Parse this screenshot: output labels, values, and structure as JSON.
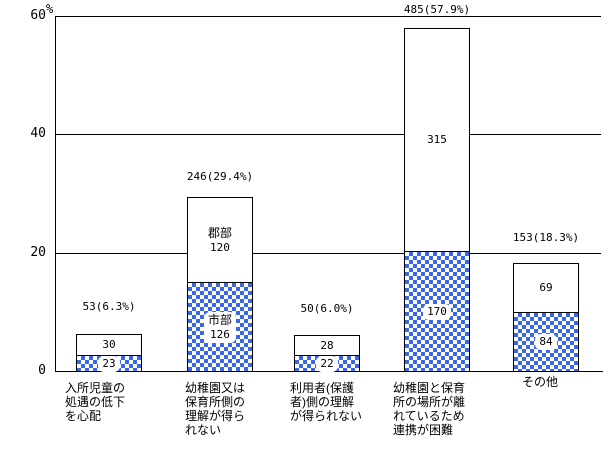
{
  "chart_data": {
    "type": "bar",
    "stacked": true,
    "title": "",
    "y_axis": {
      "unit": "%",
      "ticks": [
        0,
        20,
        40,
        60
      ],
      "min": 0,
      "max": 60,
      "gridlines": [
        20,
        40,
        60
      ]
    },
    "legend": {
      "checkered_label": "市部",
      "white_label": "郡部",
      "legend_position": "inside-second-bar"
    },
    "colors": {
      "checker_blue": "#3A67E8",
      "bar_white": "#FFFFFF",
      "line_black": "#000000"
    },
    "bars": [
      {
        "category_lines": [
          "入所児童の",
          "処遇の低下",
          "を心配"
        ],
        "total_label": "53(6.3%)",
        "total_count": 53,
        "total_pct": 6.3,
        "white_segment": {
          "count": 30,
          "label_lines": [
            "30"
          ],
          "pct": 3.55
        },
        "checkered_segment": {
          "count": 23,
          "label_lines": [
            "23"
          ],
          "pct": 2.75
        }
      },
      {
        "category_lines": [
          "幼稚園又は",
          "保育所側の",
          "理解が得ら",
          "れない"
        ],
        "total_label": "246(29.4%)",
        "total_count": 246,
        "total_pct": 29.4,
        "white_segment": {
          "count": 120,
          "label_lines": [
            "郡部",
            "120"
          ],
          "pct": 14.35
        },
        "checkered_segment": {
          "count": 126,
          "label_lines": [
            "市部",
            "126"
          ],
          "pct": 15.05
        }
      },
      {
        "category_lines": [
          "利用者(保護",
          "者)側の理解",
          "が得られない"
        ],
        "total_label": "50(6.0%)",
        "total_count": 50,
        "total_pct": 6.0,
        "white_segment": {
          "count": 28,
          "label_lines": [
            "28"
          ],
          "pct": 3.36
        },
        "checkered_segment": {
          "count": 22,
          "label_lines": [
            "22"
          ],
          "pct": 2.64
        }
      },
      {
        "category_lines": [
          "幼稚園と保育",
          "所の場所が離",
          "れているため",
          "連携が困難"
        ],
        "total_label": "485(57.9%)",
        "total_count": 485,
        "total_pct": 57.9,
        "white_segment": {
          "count": 315,
          "label_lines": [
            "315"
          ],
          "pct": 37.6
        },
        "checkered_segment": {
          "count": 170,
          "label_lines": [
            "170"
          ],
          "pct": 20.3
        }
      },
      {
        "category_lines": [
          "その他"
        ],
        "total_label": "153(18.3%)",
        "total_count": 153,
        "total_pct": 18.3,
        "white_segment": {
          "count": 69,
          "label_lines": [
            "69"
          ],
          "pct": 8.25
        },
        "checkered_segment": {
          "count": 84,
          "label_lines": [
            "84"
          ],
          "pct": 10.05
        }
      }
    ]
  }
}
